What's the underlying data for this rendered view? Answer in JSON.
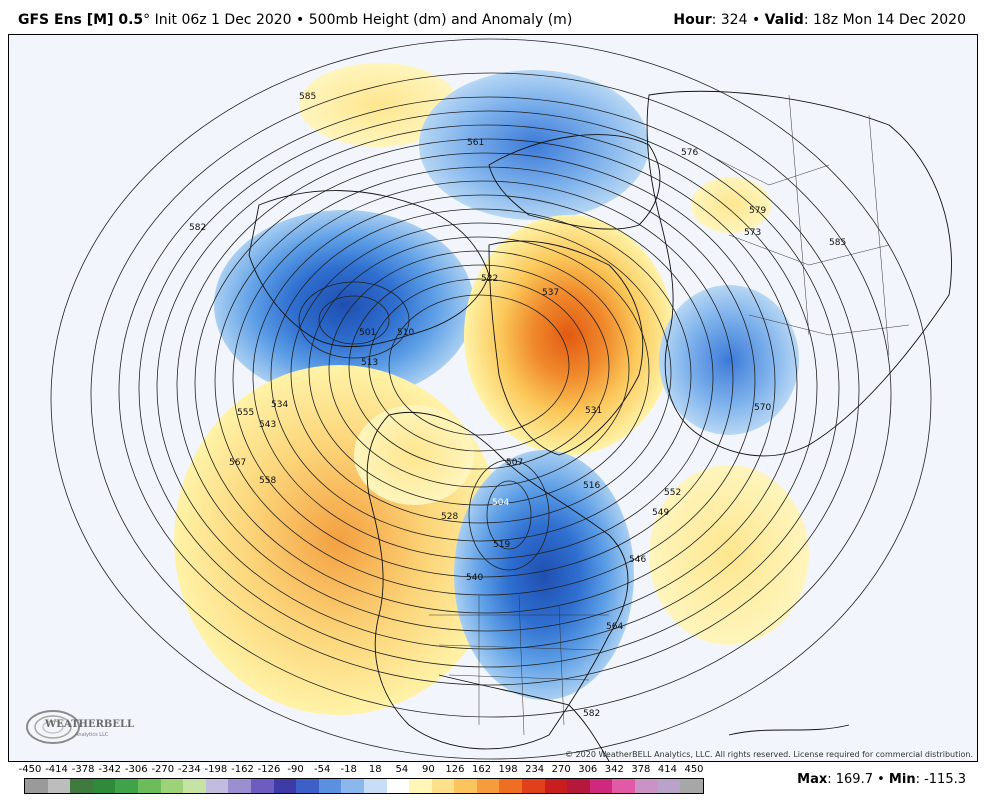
{
  "header": {
    "model": "GFS Ens [M] 0.5",
    "degree": "°",
    "init": " Init 06z 1 Dec 2020",
    "sep": " • ",
    "field": "500mb Height (dm) and Anomaly (m)",
    "hour_label": "Hour",
    "hour_value": ": 324",
    "valid_label": "Valid",
    "valid_value": ": 18z Mon 14 Dec 2020"
  },
  "map": {
    "copyright": "© 2020 WeatherBELL Analytics, LLC. All rights reserved. License required for commercial distribution.",
    "logo_text": "WEATHERBELL",
    "logo_sub": "Analytics LLC",
    "contour_labels": [
      "585",
      "561",
      "576",
      "579",
      "573",
      "585",
      "582",
      "522",
      "537",
      "510",
      "501",
      "513",
      "534",
      "555",
      "543",
      "567",
      "558",
      "528",
      "504",
      "519",
      "507",
      "516",
      "531",
      "540",
      "564",
      "546",
      "549",
      "552",
      "570",
      "582"
    ],
    "colors": {
      "warm_light": "#fff3a8",
      "warm_mid": "#fbc85a",
      "warm_strong": "#f08a2c",
      "warm_peak": "#e25a12",
      "cool_light": "#a9cff2",
      "cool_mid": "#5d9ee6",
      "cool_strong": "#2f6fd0",
      "cool_peak": "#1f4fb0",
      "ocean": "#f2f5fb",
      "contour": "#222222"
    }
  },
  "colorbar": {
    "labels": [
      "-450",
      "-414",
      "-378",
      "-342",
      "-306",
      "-270",
      "-234",
      "-198",
      "-162",
      "-126",
      "-90",
      "-54",
      "-18",
      "18",
      "54",
      "90",
      "126",
      "162",
      "198",
      "234",
      "270",
      "306",
      "342",
      "378",
      "414",
      "450"
    ],
    "colors": [
      "#9a9a9a",
      "#bdbdbd",
      "#3f7a3f",
      "#2e8b3a",
      "#3fa34a",
      "#6cbc5a",
      "#9ed27a",
      "#c7e3a4",
      "#c2bde0",
      "#9c8fd0",
      "#6f5cc0",
      "#3e3aa6",
      "#3c5fc8",
      "#5b8fe0",
      "#8ab7ec",
      "#c7def6",
      "#ffffff",
      "#fff6b8",
      "#fde08a",
      "#fbc45e",
      "#f79c3c",
      "#ef6e22",
      "#e0401a",
      "#c81e1e",
      "#b5183a",
      "#d0287c",
      "#e25aa6",
      "#c993c8",
      "#b9a3c9",
      "#a7a7a7"
    ]
  },
  "stats": {
    "max_label": "Max",
    "max_value": ": 169.7",
    "sep": " • ",
    "min_label": "Min",
    "min_value": ": -115.3"
  }
}
